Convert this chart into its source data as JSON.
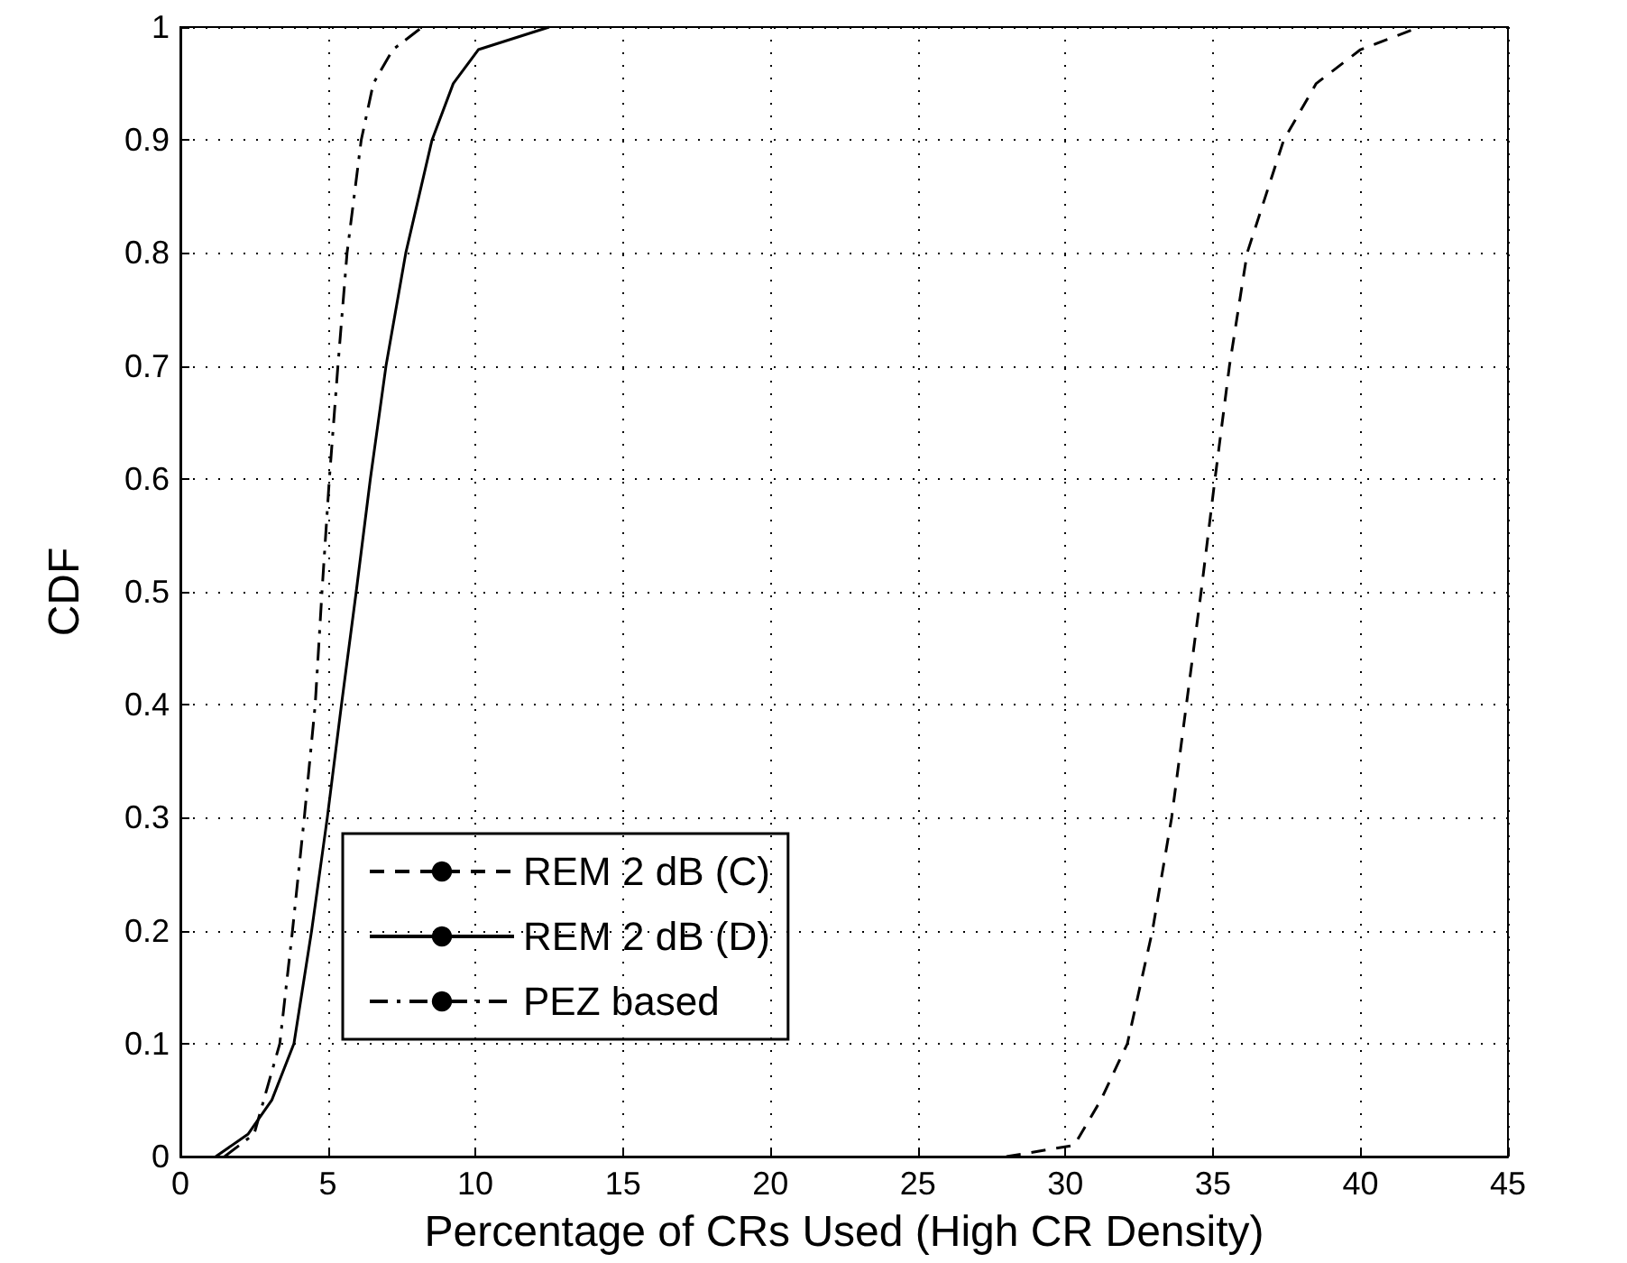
{
  "chart_data": {
    "type": "line",
    "xlabel": "Percentage of CRs Used (High CR Density)",
    "ylabel": "CDF",
    "xlim": [
      0,
      45
    ],
    "xticks": [
      0,
      5,
      10,
      15,
      20,
      25,
      30,
      35,
      40,
      45
    ],
    "ylim": [
      0,
      1
    ],
    "yticks": [
      0,
      0.1,
      0.2,
      0.3,
      0.4,
      0.5,
      0.6,
      0.7,
      0.8,
      0.9,
      1
    ],
    "grid": true,
    "legend": "bottom left",
    "marker": "none",
    "series": [
      {
        "name": "REM 2 dB (C)",
        "color": "#000000",
        "line_style": "dashed",
        "x": [
          28,
          30.3,
          31.2,
          32.1,
          32.95,
          33.6,
          34.1,
          34.6,
          35.07,
          35.56,
          36.16,
          37.4,
          38.5,
          40,
          42
        ],
        "values": [
          0,
          0.01,
          0.05,
          0.1,
          0.2,
          0.3,
          0.4,
          0.5,
          0.6,
          0.7,
          0.8,
          0.9,
          0.95,
          0.98,
          1
        ]
      },
      {
        "name": "REM 2 dB (D)",
        "color": "#000000",
        "line_style": "solid",
        "x": [
          1.2,
          2.3,
          3.1,
          3.85,
          4.45,
          4.98,
          5.46,
          5.96,
          6.44,
          6.97,
          7.64,
          8.53,
          9.25,
          10.1,
          12.5
        ],
        "values": [
          0,
          0.02,
          0.05,
          0.1,
          0.2,
          0.3,
          0.4,
          0.5,
          0.6,
          0.7,
          0.8,
          0.9,
          0.95,
          0.98,
          1
        ]
      },
      {
        "name": "PEZ based",
        "color": "#000000",
        "line_style": "dashdot",
        "x": [
          1.5,
          2.5,
          3.37,
          3.8,
          4.2,
          4.57,
          4.8,
          5.05,
          5.34,
          5.65,
          6.13,
          6.54,
          7.2,
          8.2
        ],
        "values": [
          0,
          0.02,
          0.1,
          0.2,
          0.3,
          0.4,
          0.5,
          0.6,
          0.7,
          0.8,
          0.9,
          0.95,
          0.98,
          1
        ]
      }
    ]
  }
}
